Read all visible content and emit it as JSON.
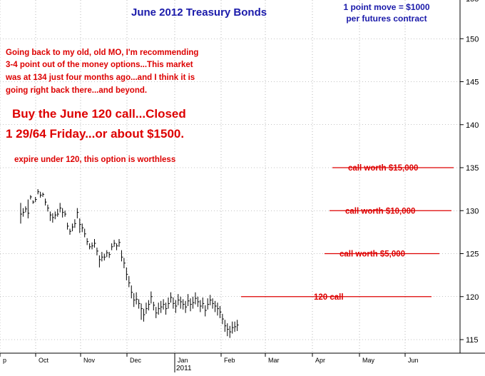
{
  "chart_data": {
    "type": "ohlc",
    "title": "June 2012 Treasury Bonds",
    "subtitle_lines": [
      "1 point move = $1000",
      "per futures contract"
    ],
    "y_range": [
      114,
      152
    ],
    "y_ticks": [
      115,
      120,
      125,
      130,
      135,
      140,
      145,
      150
    ],
    "y_tick_labels": [
      "115",
      "120",
      "125",
      "130",
      "135",
      "140",
      "145",
      "150"
    ],
    "x_tick_labels": [
      "p",
      "Oct",
      "Nov",
      "Dec",
      "Jan",
      "Feb",
      "Mar",
      "Apr",
      "May",
      "Jun"
    ],
    "x_year_label": "2011",
    "grid": true,
    "colors": {
      "price": "#000000",
      "annotation": "#dd0000",
      "title": "#1a1aaa",
      "grid": "#888888"
    },
    "annotations": {
      "para": [
        "Going back to my old, old MO, I'm recommending",
        "3-4 point out of the money options...This market",
        "was at 134 just four months ago...and I think it is",
        "going right back there...and beyond."
      ],
      "big": [
        "Buy the June 120 call...Closed",
        "1 29/64 Friday...or about $1500."
      ],
      "small": "expire under 120, this option is worthless"
    },
    "levels": [
      {
        "value": 135,
        "label": "call worth $15,000"
      },
      {
        "value": 130,
        "label": "call worth $10,000"
      },
      {
        "value": 125,
        "label": "call worth $5,000"
      },
      {
        "value": 120,
        "label": "120 call"
      }
    ],
    "bars": [
      [
        129.6,
        128.5,
        130.9
      ],
      [
        129.8,
        129.3,
        130.3
      ],
      [
        130.2,
        129.8,
        130.5
      ],
      [
        129.7,
        129.1,
        131.3
      ],
      [
        131.6,
        131.3,
        131.8
      ],
      [
        131.0,
        130.8,
        131.2
      ],
      [
        131.3,
        131.0,
        131.6
      ],
      [
        132.2,
        131.9,
        132.5
      ],
      [
        131.8,
        131.5,
        132.2
      ],
      [
        131.9,
        131.6,
        132.1
      ],
      [
        131.0,
        130.6,
        131.4
      ],
      [
        130.3,
        129.9,
        130.7
      ],
      [
        129.5,
        128.8,
        129.9
      ],
      [
        129.2,
        128.6,
        129.7
      ],
      [
        129.5,
        129.0,
        129.9
      ],
      [
        129.6,
        129.3,
        130.2
      ],
      [
        130.3,
        129.8,
        130.9
      ],
      [
        129.8,
        129.2,
        130.3
      ],
      [
        129.6,
        129.3,
        130.0
      ],
      [
        128.2,
        127.8,
        128.6
      ],
      [
        127.6,
        127.2,
        127.9
      ],
      [
        128.1,
        127.6,
        128.5
      ],
      [
        128.5,
        128.0,
        129.0
      ],
      [
        129.8,
        129.1,
        130.3
      ],
      [
        128.4,
        127.4,
        129.1
      ],
      [
        128.0,
        127.5,
        128.5
      ],
      [
        127.3,
        126.9,
        127.9
      ],
      [
        126.4,
        126.0,
        126.8
      ],
      [
        125.8,
        125.5,
        126.2
      ],
      [
        125.9,
        125.5,
        126.3
      ],
      [
        126.2,
        125.7,
        126.7
      ],
      [
        125.3,
        124.8,
        125.7
      ],
      [
        124.3,
        123.4,
        124.8
      ],
      [
        124.6,
        124.1,
        125.2
      ],
      [
        124.6,
        124.2,
        125.0
      ],
      [
        125.1,
        124.6,
        125.4
      ],
      [
        124.9,
        124.5,
        125.2
      ],
      [
        125.8,
        125.4,
        126.2
      ],
      [
        126.2,
        125.8,
        126.6
      ],
      [
        125.9,
        125.4,
        126.2
      ],
      [
        126.3,
        125.8,
        126.7
      ],
      [
        124.6,
        124.1,
        125.4
      ],
      [
        123.9,
        123.3,
        124.5
      ],
      [
        122.6,
        121.9,
        123.4
      ],
      [
        121.6,
        121.1,
        122.4
      ],
      [
        120.5,
        119.8,
        121.3
      ],
      [
        119.6,
        118.8,
        120.4
      ],
      [
        119.7,
        119.1,
        120.5
      ],
      [
        119.2,
        118.6,
        119.7
      ],
      [
        118.6,
        117.3,
        119.2
      ],
      [
        117.9,
        117.1,
        118.6
      ],
      [
        118.6,
        118.0,
        119.3
      ],
      [
        119.1,
        118.4,
        119.6
      ],
      [
        120.0,
        119.2,
        120.6
      ],
      [
        119.0,
        118.4,
        119.4
      ],
      [
        118.1,
        117.5,
        118.8
      ],
      [
        118.6,
        117.9,
        119.3
      ],
      [
        118.8,
        118.1,
        119.5
      ],
      [
        119.1,
        118.5,
        119.7
      ],
      [
        118.6,
        117.9,
        119.3
      ],
      [
        119.2,
        118.6,
        119.9
      ],
      [
        119.9,
        119.3,
        120.5
      ],
      [
        119.2,
        118.6,
        119.9
      ],
      [
        118.9,
        118.1,
        119.6
      ],
      [
        119.6,
        119.0,
        120.3
      ],
      [
        119.4,
        118.6,
        120.0
      ],
      [
        119.1,
        118.5,
        119.7
      ],
      [
        118.8,
        118.1,
        119.5
      ],
      [
        119.5,
        118.9,
        120.3
      ],
      [
        119.1,
        118.3,
        119.8
      ],
      [
        119.3,
        118.6,
        120.0
      ],
      [
        119.8,
        119.1,
        120.5
      ],
      [
        119.4,
        118.8,
        120.0
      ],
      [
        118.9,
        118.2,
        119.6
      ],
      [
        119.2,
        118.6,
        119.9
      ],
      [
        118.4,
        117.7,
        119.0
      ],
      [
        119.1,
        118.5,
        119.8
      ],
      [
        119.6,
        119.0,
        120.2
      ],
      [
        119.2,
        118.6,
        119.8
      ],
      [
        118.9,
        118.2,
        119.5
      ],
      [
        118.6,
        117.8,
        119.3
      ],
      [
        118.2,
        117.5,
        118.9
      ],
      [
        117.4,
        116.8,
        118.0
      ],
      [
        116.6,
        115.9,
        117.3
      ],
      [
        116.2,
        115.4,
        116.9
      ],
      [
        115.9,
        115.2,
        116.6
      ],
      [
        116.4,
        115.7,
        117.1
      ],
      [
        116.5,
        115.9,
        117.1
      ],
      [
        116.7,
        116.0,
        117.3
      ]
    ]
  }
}
